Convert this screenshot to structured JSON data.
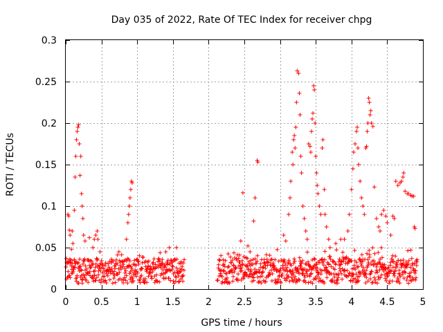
{
  "chart_data": {
    "type": "scatter",
    "title": "Day 035 of 2022, Rate Of TEC Index for receiver chpg",
    "xlabel": "GPS time / hours",
    "ylabel": "ROTI / TECUs",
    "xlim": [
      0,
      5
    ],
    "ylim": [
      0,
      0.3
    ],
    "x_ticks": [
      0,
      0.5,
      1,
      1.5,
      2,
      2.5,
      3,
      3.5,
      4,
      4.5,
      5
    ],
    "x_tick_labels": [
      "0",
      "0.5",
      "1",
      "1.5",
      "2",
      "2.5",
      "3",
      "3.5",
      "4",
      "4.5",
      "5"
    ],
    "y_ticks": [
      0,
      0.05,
      0.1,
      0.15,
      0.2,
      0.25,
      0.3
    ],
    "y_tick_labels": [
      "0",
      "0.05",
      "0.1",
      "0.15",
      "0.2",
      "0.25",
      "0.3"
    ],
    "grid": true,
    "marker": "+",
    "color": "#ff0000",
    "series": [
      {
        "name": "ROTI",
        "data": [
          [
            0.03,
            0.09
          ],
          [
            0.04,
            0.088
          ],
          [
            0.05,
            0.071
          ],
          [
            0.06,
            0.065
          ],
          [
            0.08,
            0.048
          ],
          [
            0.09,
            0.07
          ],
          [
            0.1,
            0.055
          ],
          [
            0.12,
            0.095
          ],
          [
            0.13,
            0.135
          ],
          [
            0.14,
            0.16
          ],
          [
            0.15,
            0.18
          ],
          [
            0.16,
            0.19
          ],
          [
            0.17,
            0.195
          ],
          [
            0.18,
            0.198
          ],
          [
            0.19,
            0.175
          ],
          [
            0.2,
            0.137
          ],
          [
            0.21,
            0.16
          ],
          [
            0.22,
            0.115
          ],
          [
            0.23,
            0.1
          ],
          [
            0.24,
            0.085
          ],
          [
            0.25,
            0.065
          ],
          [
            0.27,
            0.058
          ],
          [
            0.33,
            0.062
          ],
          [
            0.38,
            0.05
          ],
          [
            0.4,
            0.06
          ],
          [
            0.42,
            0.065
          ],
          [
            0.44,
            0.07
          ],
          [
            0.45,
            0.06
          ],
          [
            0.48,
            0.045
          ],
          [
            0.85,
            0.06
          ],
          [
            0.87,
            0.08
          ],
          [
            0.88,
            0.09
          ],
          [
            0.89,
            0.1
          ],
          [
            0.9,
            0.11
          ],
          [
            0.91,
            0.12
          ],
          [
            0.92,
            0.13
          ],
          [
            0.93,
            0.128
          ],
          [
            1.4,
            0.045
          ],
          [
            1.45,
            0.05
          ],
          [
            1.55,
            0.05
          ],
          [
            2.45,
            0.058
          ],
          [
            2.48,
            0.116
          ],
          [
            2.55,
            0.052
          ],
          [
            2.58,
            0.045
          ],
          [
            2.63,
            0.082
          ],
          [
            2.65,
            0.11
          ],
          [
            2.68,
            0.155
          ],
          [
            2.69,
            0.153
          ],
          [
            3.05,
            0.065
          ],
          [
            3.08,
            0.058
          ],
          [
            3.12,
            0.09
          ],
          [
            3.14,
            0.11
          ],
          [
            3.15,
            0.13
          ],
          [
            3.17,
            0.165
          ],
          [
            3.18,
            0.15
          ],
          [
            3.19,
            0.18
          ],
          [
            3.2,
            0.185
          ],
          [
            3.21,
            0.17
          ],
          [
            3.22,
            0.195
          ],
          [
            3.23,
            0.225
          ],
          [
            3.24,
            0.263
          ],
          [
            3.26,
            0.26
          ],
          [
            3.27,
            0.236
          ],
          [
            3.28,
            0.21
          ],
          [
            3.29,
            0.16
          ],
          [
            3.3,
            0.14
          ],
          [
            3.32,
            0.1
          ],
          [
            3.34,
            0.085
          ],
          [
            3.36,
            0.07
          ],
          [
            3.38,
            0.06
          ],
          [
            3.4,
            0.175
          ],
          [
            3.42,
            0.172
          ],
          [
            3.43,
            0.165
          ],
          [
            3.44,
            0.19
          ],
          [
            3.45,
            0.205
          ],
          [
            3.46,
            0.212
          ],
          [
            3.47,
            0.245
          ],
          [
            3.48,
            0.24
          ],
          [
            3.49,
            0.2
          ],
          [
            3.5,
            0.16
          ],
          [
            3.51,
            0.14
          ],
          [
            3.52,
            0.125
          ],
          [
            3.53,
            0.115
          ],
          [
            3.55,
            0.1
          ],
          [
            3.57,
            0.09
          ],
          [
            3.59,
            0.17
          ],
          [
            3.6,
            0.18
          ],
          [
            3.62,
            0.12
          ],
          [
            3.63,
            0.09
          ],
          [
            3.65,
            0.075
          ],
          [
            3.68,
            0.06
          ],
          [
            3.7,
            0.05
          ],
          [
            3.78,
            0.055
          ],
          [
            3.85,
            0.06
          ],
          [
            3.9,
            0.06
          ],
          [
            3.95,
            0.07
          ],
          [
            3.97,
            0.09
          ],
          [
            4.0,
            0.12
          ],
          [
            4.02,
            0.145
          ],
          [
            4.03,
            0.165
          ],
          [
            4.05,
            0.175
          ],
          [
            4.07,
            0.19
          ],
          [
            4.08,
            0.195
          ],
          [
            4.09,
            0.17
          ],
          [
            4.1,
            0.15
          ],
          [
            4.12,
            0.13
          ],
          [
            4.14,
            0.11
          ],
          [
            4.16,
            0.1
          ],
          [
            4.18,
            0.09
          ],
          [
            4.2,
            0.17
          ],
          [
            4.21,
            0.172
          ],
          [
            4.22,
            0.19
          ],
          [
            4.23,
            0.2
          ],
          [
            4.24,
            0.23
          ],
          [
            4.25,
            0.225
          ],
          [
            4.26,
            0.21
          ],
          [
            4.27,
            0.215
          ],
          [
            4.28,
            0.2
          ],
          [
            4.3,
            0.196
          ],
          [
            4.32,
            0.123
          ],
          [
            4.35,
            0.085
          ],
          [
            4.38,
            0.075
          ],
          [
            4.4,
            0.07
          ],
          [
            4.42,
            0.09
          ],
          [
            4.45,
            0.095
          ],
          [
            4.48,
            0.088
          ],
          [
            4.5,
            0.08
          ],
          [
            4.55,
            0.065
          ],
          [
            4.58,
            0.088
          ],
          [
            4.6,
            0.085
          ],
          [
            4.62,
            0.13
          ],
          [
            4.65,
            0.125
          ],
          [
            4.68,
            0.128
          ],
          [
            4.7,
            0.13
          ],
          [
            4.72,
            0.135
          ],
          [
            4.73,
            0.14
          ],
          [
            4.75,
            0.118
          ],
          [
            4.78,
            0.115
          ],
          [
            4.8,
            0.115
          ],
          [
            4.83,
            0.113
          ],
          [
            4.85,
            0.112
          ],
          [
            4.87,
            0.112
          ],
          [
            4.88,
            0.075
          ],
          [
            4.89,
            0.073
          ]
        ]
      }
    ]
  }
}
